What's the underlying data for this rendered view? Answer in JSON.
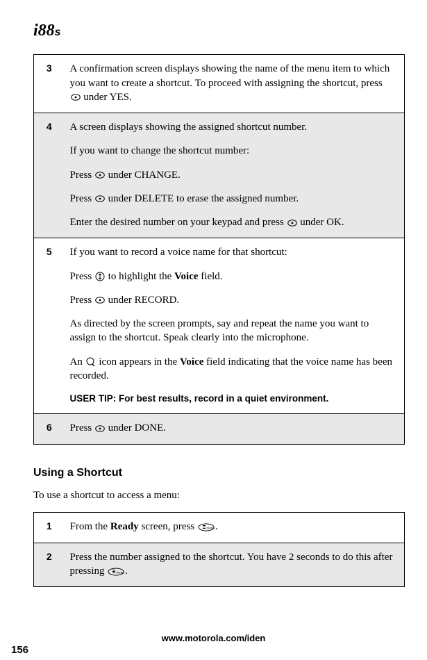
{
  "logo": {
    "main": "i88",
    "suffix": "s"
  },
  "table1": {
    "rows": [
      {
        "num": "3",
        "shaded": false,
        "paras": [
          {
            "text": "A confirmation screen displays showing the name of the menu item to which you want to create a shortcut. To proceed with assigning the shortcut, press {softkey} under YES."
          }
        ]
      },
      {
        "num": "4",
        "shaded": true,
        "paras": [
          {
            "text": "A screen displays showing the assigned shortcut number."
          },
          {
            "text": "If you want to change the shortcut number:"
          },
          {
            "text": "Press {softkey} under CHANGE."
          },
          {
            "text": "Press {softkey} under DELETE to erase the assigned number."
          },
          {
            "text": "Enter the desired number on your keypad and press {softkey} under OK."
          }
        ]
      },
      {
        "num": "5",
        "shaded": false,
        "paras": [
          {
            "text": "If you want to record a voice name for that shortcut:"
          },
          {
            "text": "Press {nav} to highlight the <b>Voice</b> field."
          },
          {
            "text": "Press {softkey} under RECORD."
          },
          {
            "text": "As directed by the screen prompts, say and repeat the name you want to assign to the shortcut. Speak clearly into the microphone."
          },
          {
            "text": "An {voice} icon appears in the <b>Voice</b> field indicating that the voice name has been recorded."
          }
        ],
        "usertip": {
          "label": "USER TIP:",
          "text": "For best results, record in a quiet environment."
        }
      },
      {
        "num": "6",
        "shaded": true,
        "paras": [
          {
            "text": "Press {softkey} under DONE."
          }
        ]
      }
    ]
  },
  "section_title": "Using a Shortcut",
  "section_intro": "To use a shortcut to access a menu:",
  "table2": {
    "rows": [
      {
        "num": "1",
        "shaded": false,
        "paras": [
          {
            "text": "From the <b>Ready</b> screen, press {menu}."
          }
        ]
      },
      {
        "num": "2",
        "shaded": true,
        "paras": [
          {
            "text": "Press the number assigned to the shortcut. You have 2 seconds to do this after pressing {menu}."
          }
        ]
      }
    ]
  },
  "footer_url": "www.motorola.com/iden",
  "page_number": "156"
}
